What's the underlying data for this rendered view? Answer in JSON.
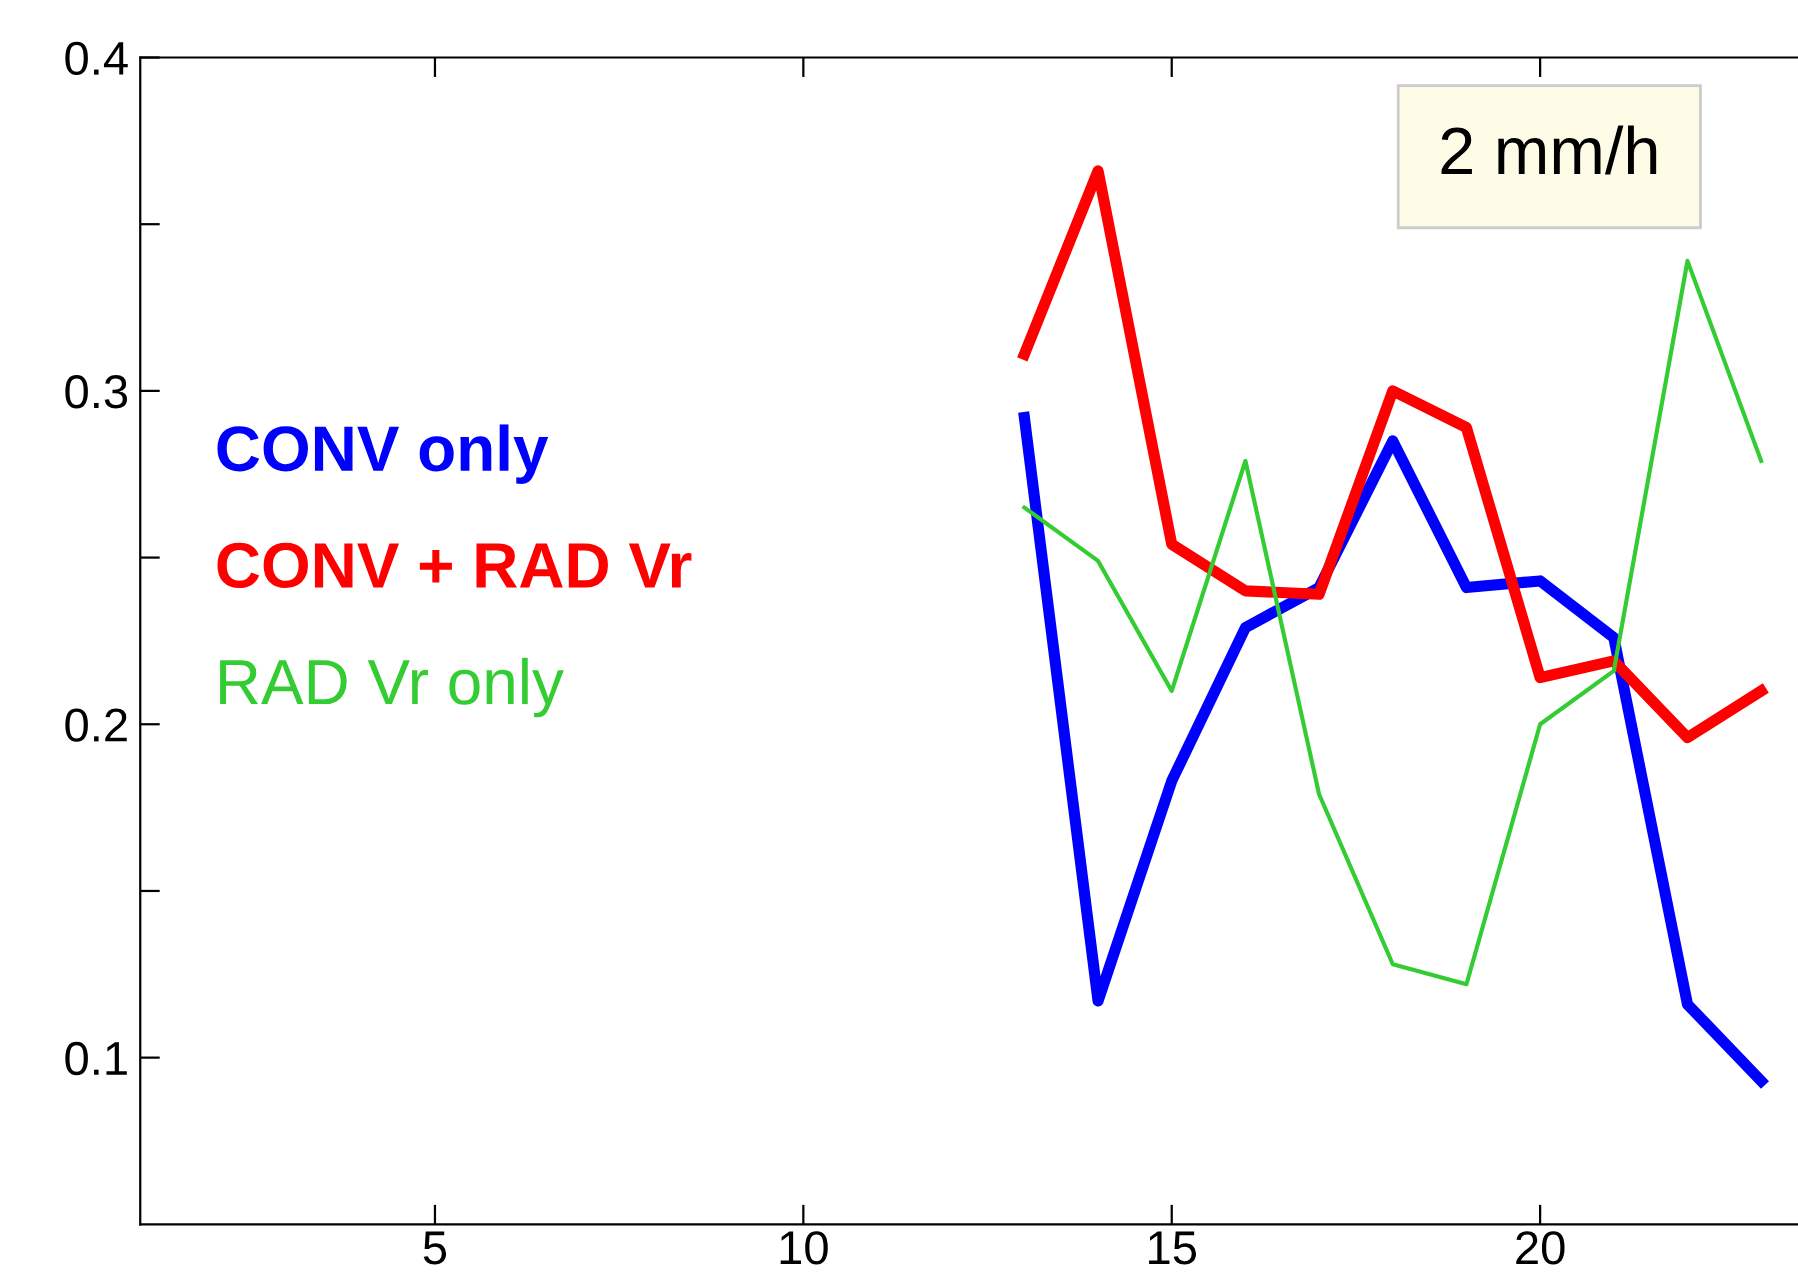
{
  "chart_data": {
    "type": "line",
    "x": [
      13,
      14,
      15,
      16,
      17,
      18,
      19,
      20,
      21,
      22,
      23
    ],
    "series": [
      {
        "name": "CONV only",
        "color": "#0000ff",
        "values": [
          0.292,
          0.117,
          0.183,
          0.229,
          0.241,
          0.285,
          0.241,
          0.243,
          0.226,
          0.116,
          0.093
        ]
      },
      {
        "name": "CONV + RAD Vr",
        "color": "#ff0000",
        "values": [
          0.311,
          0.366,
          0.254,
          0.24,
          0.239,
          0.3,
          0.289,
          0.214,
          0.219,
          0.196,
          0.21
        ]
      },
      {
        "name": "RAD Vr only",
        "color": "#33cc33",
        "values": [
          0.265,
          0.249,
          0.21,
          0.279,
          0.179,
          0.128,
          0.122,
          0.2,
          0.216,
          0.339,
          0.279
        ]
      }
    ],
    "xlim": [
      1,
      23.5
    ],
    "xticks": [
      5,
      10,
      15,
      20
    ],
    "ylim": [
      0.05,
      0.4
    ],
    "yticks": [
      0.1,
      {
        "value": 0.15,
        "label": null
      },
      0.2,
      {
        "value": 0.25,
        "label": null
      },
      0.3,
      {
        "value": 0.35,
        "label": null
      },
      0.4
    ],
    "annotations": [
      "2 mm/h"
    ],
    "grid": false,
    "marker": "none",
    "line_style": "solid"
  }
}
